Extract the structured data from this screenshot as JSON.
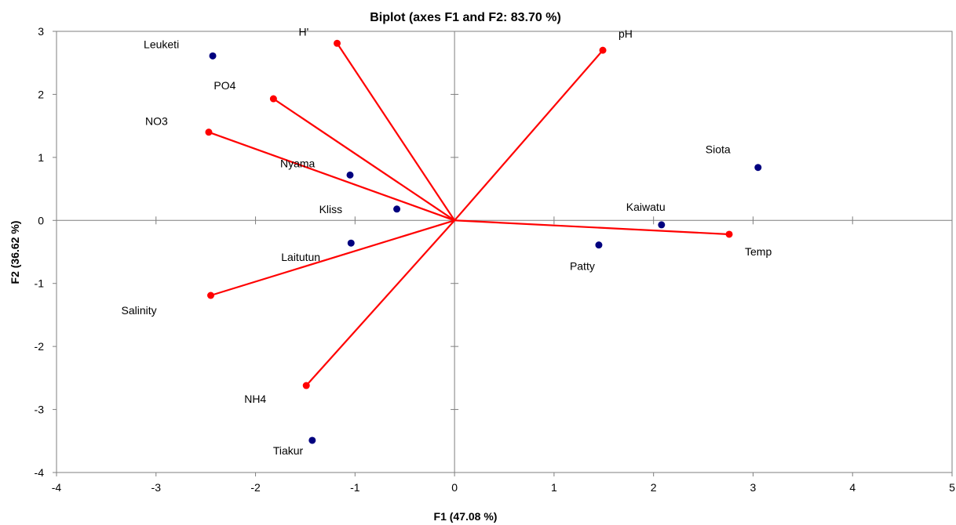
{
  "chart_data": {
    "type": "scatter",
    "title": "Biplot (axes F1 and F2: 83.70 %)",
    "xlabel": "F1 (47.08 %)",
    "ylabel": "F2 (36.62 %)",
    "xlim": [
      -4,
      5
    ],
    "ylim": [
      -4,
      3
    ],
    "xticks": [
      -4,
      -3,
      -2,
      -1,
      0,
      1,
      2,
      3,
      4,
      5
    ],
    "yticks": [
      -4,
      -3,
      -2,
      -1,
      0,
      1,
      2,
      3
    ],
    "grid": false,
    "colors": {
      "observations": "#00007F",
      "variables": "#FF0000"
    },
    "observations": [
      {
        "name": "Leuketi",
        "x": -2.43,
        "y": 2.61
      },
      {
        "name": "Nyama",
        "x": -1.05,
        "y": 0.72
      },
      {
        "name": "Kliss",
        "x": -0.58,
        "y": 0.18
      },
      {
        "name": "Laitutun",
        "x": -1.04,
        "y": -0.36
      },
      {
        "name": "Tiakur",
        "x": -1.43,
        "y": -3.49
      },
      {
        "name": "Siota",
        "x": 3.05,
        "y": 0.84
      },
      {
        "name": "Kaiwatu",
        "x": 2.08,
        "y": -0.07
      },
      {
        "name": "Patty",
        "x": 1.45,
        "y": -0.39
      }
    ],
    "variables": [
      {
        "name": "H'",
        "x": -1.18,
        "y": 2.81
      },
      {
        "name": "pH",
        "x": 1.49,
        "y": 2.7
      },
      {
        "name": "PO4",
        "x": -1.82,
        "y": 1.93
      },
      {
        "name": "NO3",
        "x": -2.47,
        "y": 1.4
      },
      {
        "name": "Salinity",
        "x": -2.45,
        "y": -1.19
      },
      {
        "name": "NH4",
        "x": -1.49,
        "y": -2.62
      },
      {
        "name": "Temp",
        "x": 2.76,
        "y": -0.22
      }
    ]
  }
}
